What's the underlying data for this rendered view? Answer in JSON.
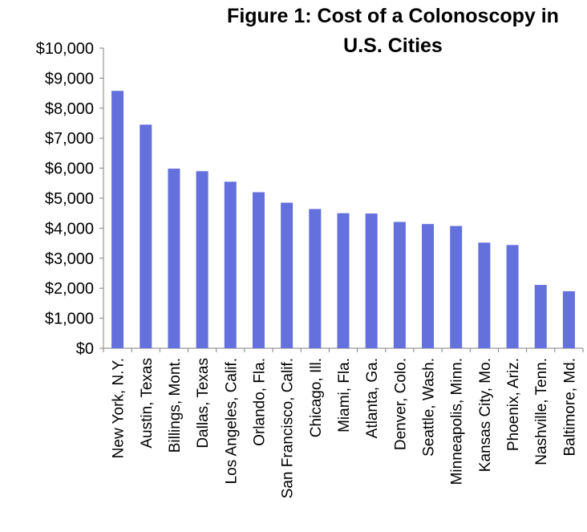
{
  "chart_data": {
    "type": "bar",
    "title": "Figure 1: Cost of a Colonoscopy in U.S. Cities",
    "xlabel": "",
    "ylabel": "",
    "ylim": [
      0,
      10000
    ],
    "yticks": [
      "$0",
      "$1,000",
      "$2,000",
      "$3,000",
      "$4,000",
      "$5,000",
      "$6,000",
      "$7,000",
      "$8,000",
      "$9,000",
      "$10,000"
    ],
    "categories": [
      "New York, N.Y.",
      "Austin, Texas",
      "Billings, Mont.",
      "Dallas, Texas",
      "Los Angeles, Calif.",
      "Orlando, Fla.",
      "San Francisco, Calif.",
      "Chicago, Ill.",
      "Miami, Fla.",
      "Atlanta, Ga.",
      "Denver, Colo.",
      "Seattle, Wash.",
      "Minneapolis, Minn.",
      "Kansas City, Mo.",
      "Phoenix, Ariz.",
      "Nashville, Tenn.",
      "Baltimore, Md."
    ],
    "values": [
      8577,
      7450,
      5985,
      5900,
      5550,
      5200,
      4850,
      4640,
      4500,
      4490,
      4210,
      4140,
      4075,
      3520,
      3440,
      2110,
      1900
    ],
    "bar_color": "#6470dc",
    "grid": false
  }
}
